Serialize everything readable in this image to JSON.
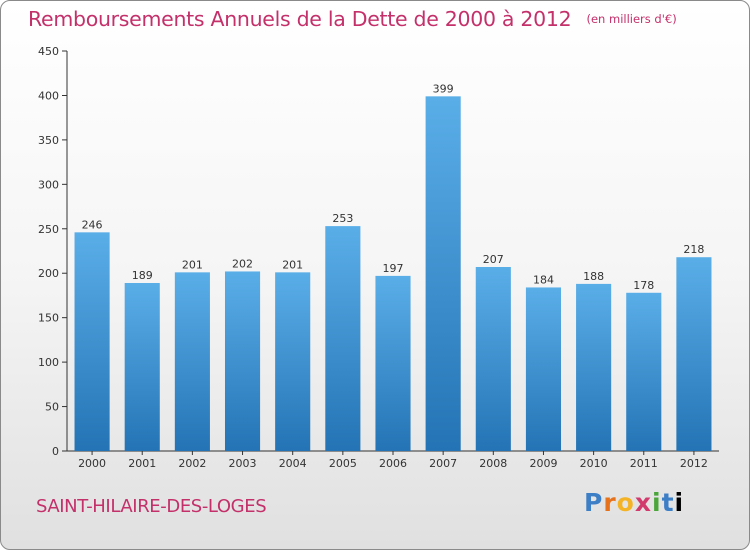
{
  "chart_data": {
    "type": "bar",
    "title": "Remboursements Annuels de la Dette de 2000 à 2012",
    "unit_note": "(en milliers d'€)",
    "categories": [
      "2000",
      "2001",
      "2002",
      "2003",
      "2004",
      "2005",
      "2006",
      "2007",
      "2008",
      "2009",
      "2010",
      "2011",
      "2012"
    ],
    "values": [
      246,
      189,
      201,
      202,
      201,
      253,
      197,
      399,
      207,
      184,
      188,
      178,
      218
    ],
    "ylim": [
      0,
      450
    ],
    "yticks": [
      0,
      50,
      100,
      150,
      200,
      250,
      300,
      350,
      400,
      450
    ],
    "xlabel": "",
    "ylabel": "",
    "grid": false,
    "legend": "none",
    "bar_color": "#3a8fd4"
  },
  "commune": "SAINT-HILAIRE-DES-LOGES",
  "logo": {
    "letters": [
      "P",
      "r",
      "o",
      "x",
      "i",
      "t",
      "i"
    ]
  },
  "colors": {
    "title": "#c4306a",
    "bar_top": "#5aaee8",
    "bar_bottom": "#2474b5"
  }
}
